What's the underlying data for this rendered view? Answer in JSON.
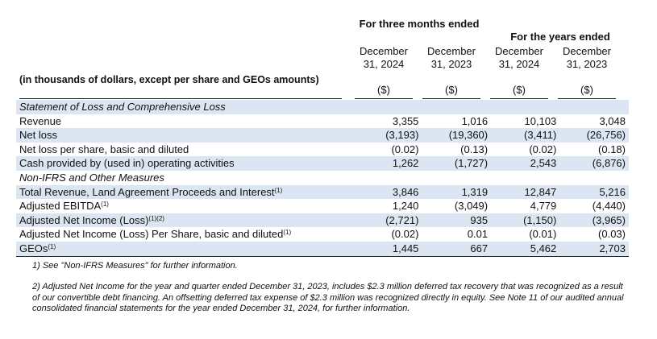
{
  "header": {
    "group1": "For three months ended",
    "group2": "For the years ended",
    "columns": [
      "December 31, 2024",
      "December 31, 2023",
      "December 31, 2024",
      "December 31, 2023"
    ],
    "units_label": "(in thousands of dollars, except per share and GEOs amounts)",
    "currency": [
      "($)",
      "($)",
      "($)",
      "($)"
    ]
  },
  "rows": [
    {
      "label": "Statement of Loss and Comprehensive Loss",
      "sup": "",
      "values": [
        "",
        "",
        "",
        ""
      ],
      "section": true
    },
    {
      "label": "Revenue",
      "sup": "",
      "values": [
        "3,355",
        "1,016",
        "10,103",
        "3,048"
      ]
    },
    {
      "label": "Net loss",
      "sup": "",
      "values": [
        "(3,193)",
        "(19,360)",
        "(3,411)",
        "(26,756)"
      ]
    },
    {
      "label": "Net loss per share, basic and diluted",
      "sup": "",
      "values": [
        "(0.02)",
        "(0.13)",
        "(0.02)",
        "(0.18)"
      ]
    },
    {
      "label": "Cash provided by (used in) operating activities",
      "sup": "",
      "values": [
        "1,262",
        "(1,727)",
        "2,543",
        "(6,876)"
      ]
    },
    {
      "label": "Non-IFRS and Other Measures",
      "sup": "",
      "values": [
        "",
        "",
        "",
        ""
      ],
      "section": true
    },
    {
      "label": "Total Revenue, Land Agreement Proceeds and Interest",
      "sup": "(1)",
      "values": [
        "3,846",
        "1,319",
        "12,847",
        "5,216"
      ]
    },
    {
      "label": "Adjusted EBITDA",
      "sup": "(1)",
      "values": [
        "1,240",
        "(3,049)",
        "4,779",
        "(4,440)"
      ]
    },
    {
      "label": "Adjusted Net Income (Loss)",
      "sup": "(1)(2)",
      "values": [
        "(2,721)",
        "935",
        "(1,150)",
        "(3,965)"
      ]
    },
    {
      "label": "Adjusted Net Income (Loss) Per Share, basic and diluted",
      "sup": "(1)",
      "values": [
        "(0.02)",
        "0.01",
        "(0.01)",
        "(0.03)"
      ]
    },
    {
      "label": "GEOs",
      "sup": "(1)",
      "values": [
        "1,445",
        "667",
        "5,462",
        "2,703"
      ]
    }
  ],
  "footnotes": [
    "1) See \"Non-IFRS Measures\" for further information.",
    "2) Adjusted Net Income for the year and quarter ended December 31, 2023, includes $2.3 million deferred tax recovery that was recognized as a result of our convertible debt financing. An offsetting deferred tax expense of $2.3 million was recognized directly in equity. See Note 11 of our audited annual consolidated financial statements for the year ended December 31, 2024, for further information."
  ]
}
